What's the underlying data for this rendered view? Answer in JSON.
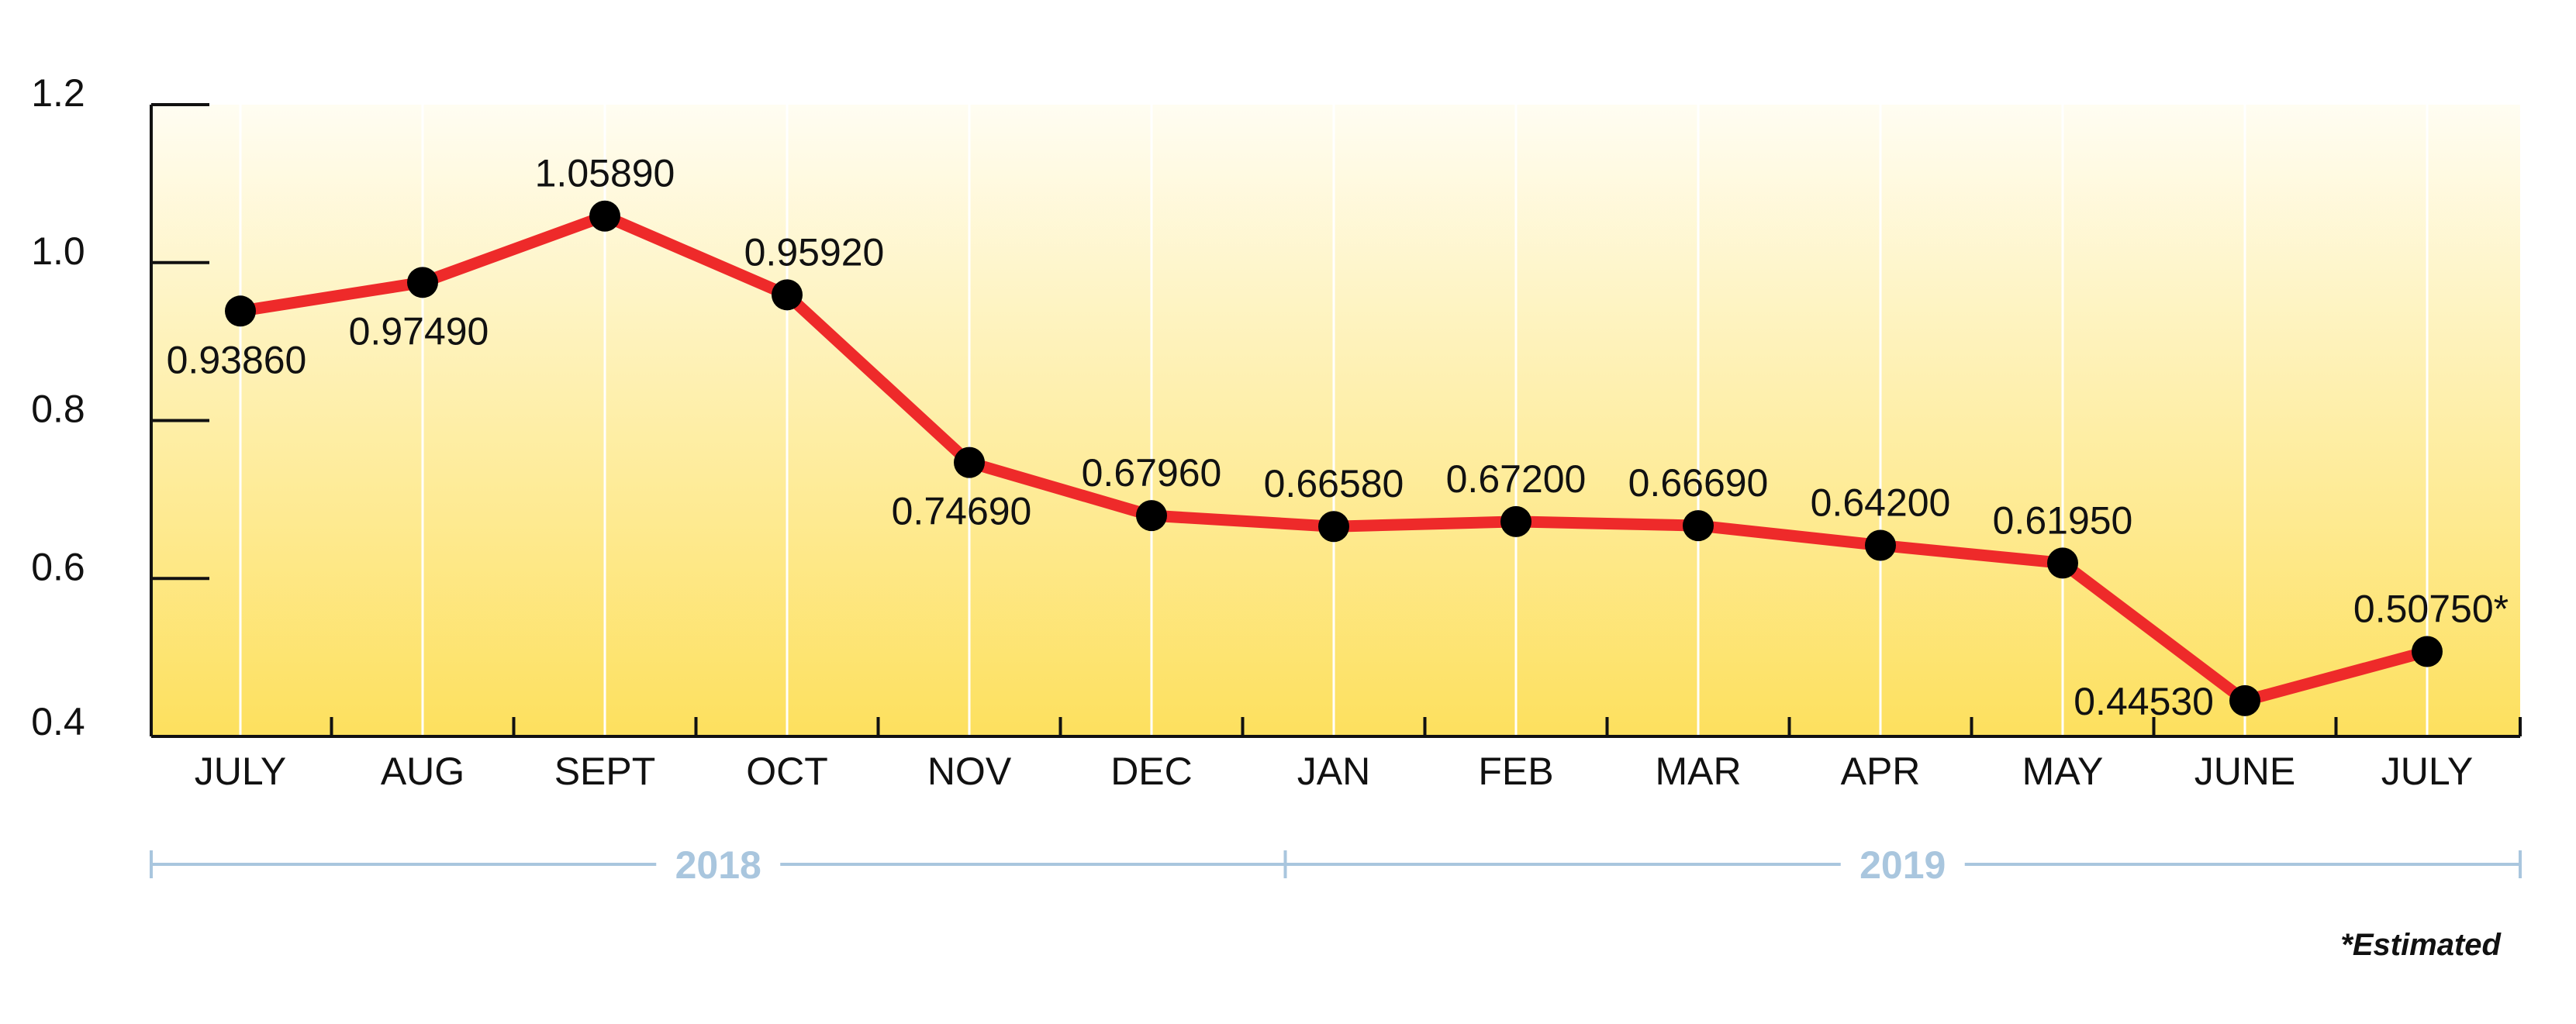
{
  "chart_data": {
    "type": "line",
    "categories": [
      "JULY",
      "AUG",
      "SEPT",
      "OCT",
      "NOV",
      "DEC",
      "JAN",
      "FEB",
      "MAR",
      "APR",
      "MAY",
      "JUNE",
      "JULY"
    ],
    "series": [
      {
        "values": [
          0.9386,
          0.9749,
          1.0589,
          0.9592,
          0.7469,
          0.6796,
          0.6658,
          0.672,
          0.6669,
          0.642,
          0.6195,
          0.4453,
          0.5075
        ],
        "labels": [
          "0.93860",
          "0.97490",
          "1.05890",
          "0.95920",
          "0.74690",
          "0.67960",
          "0.66580",
          "0.67200",
          "0.66690",
          "0.64200",
          "0.61950",
          "0.44530",
          "0.50750*"
        ]
      }
    ],
    "ylim": [
      0.4,
      1.2
    ],
    "yticks": [
      0.4,
      0.6,
      0.8,
      1.0,
      1.2
    ],
    "ytick_labels": [
      "0.4",
      "0.6",
      "0.8",
      "1.0",
      "1.2"
    ],
    "grid": "vertical",
    "year_groups": [
      {
        "label": "2018",
        "start_index": 0,
        "end_index": 6
      },
      {
        "label": "2019",
        "start_index": 6,
        "end_index": 12
      }
    ],
    "footnote": "*Estimated",
    "colors": {
      "line": "#ee2a2a",
      "marker": "#000000",
      "background_top": "#fffdf2",
      "background_bottom": "#fde05e",
      "grid": "#ffffff",
      "year_bracket": "#a9c6de"
    }
  }
}
